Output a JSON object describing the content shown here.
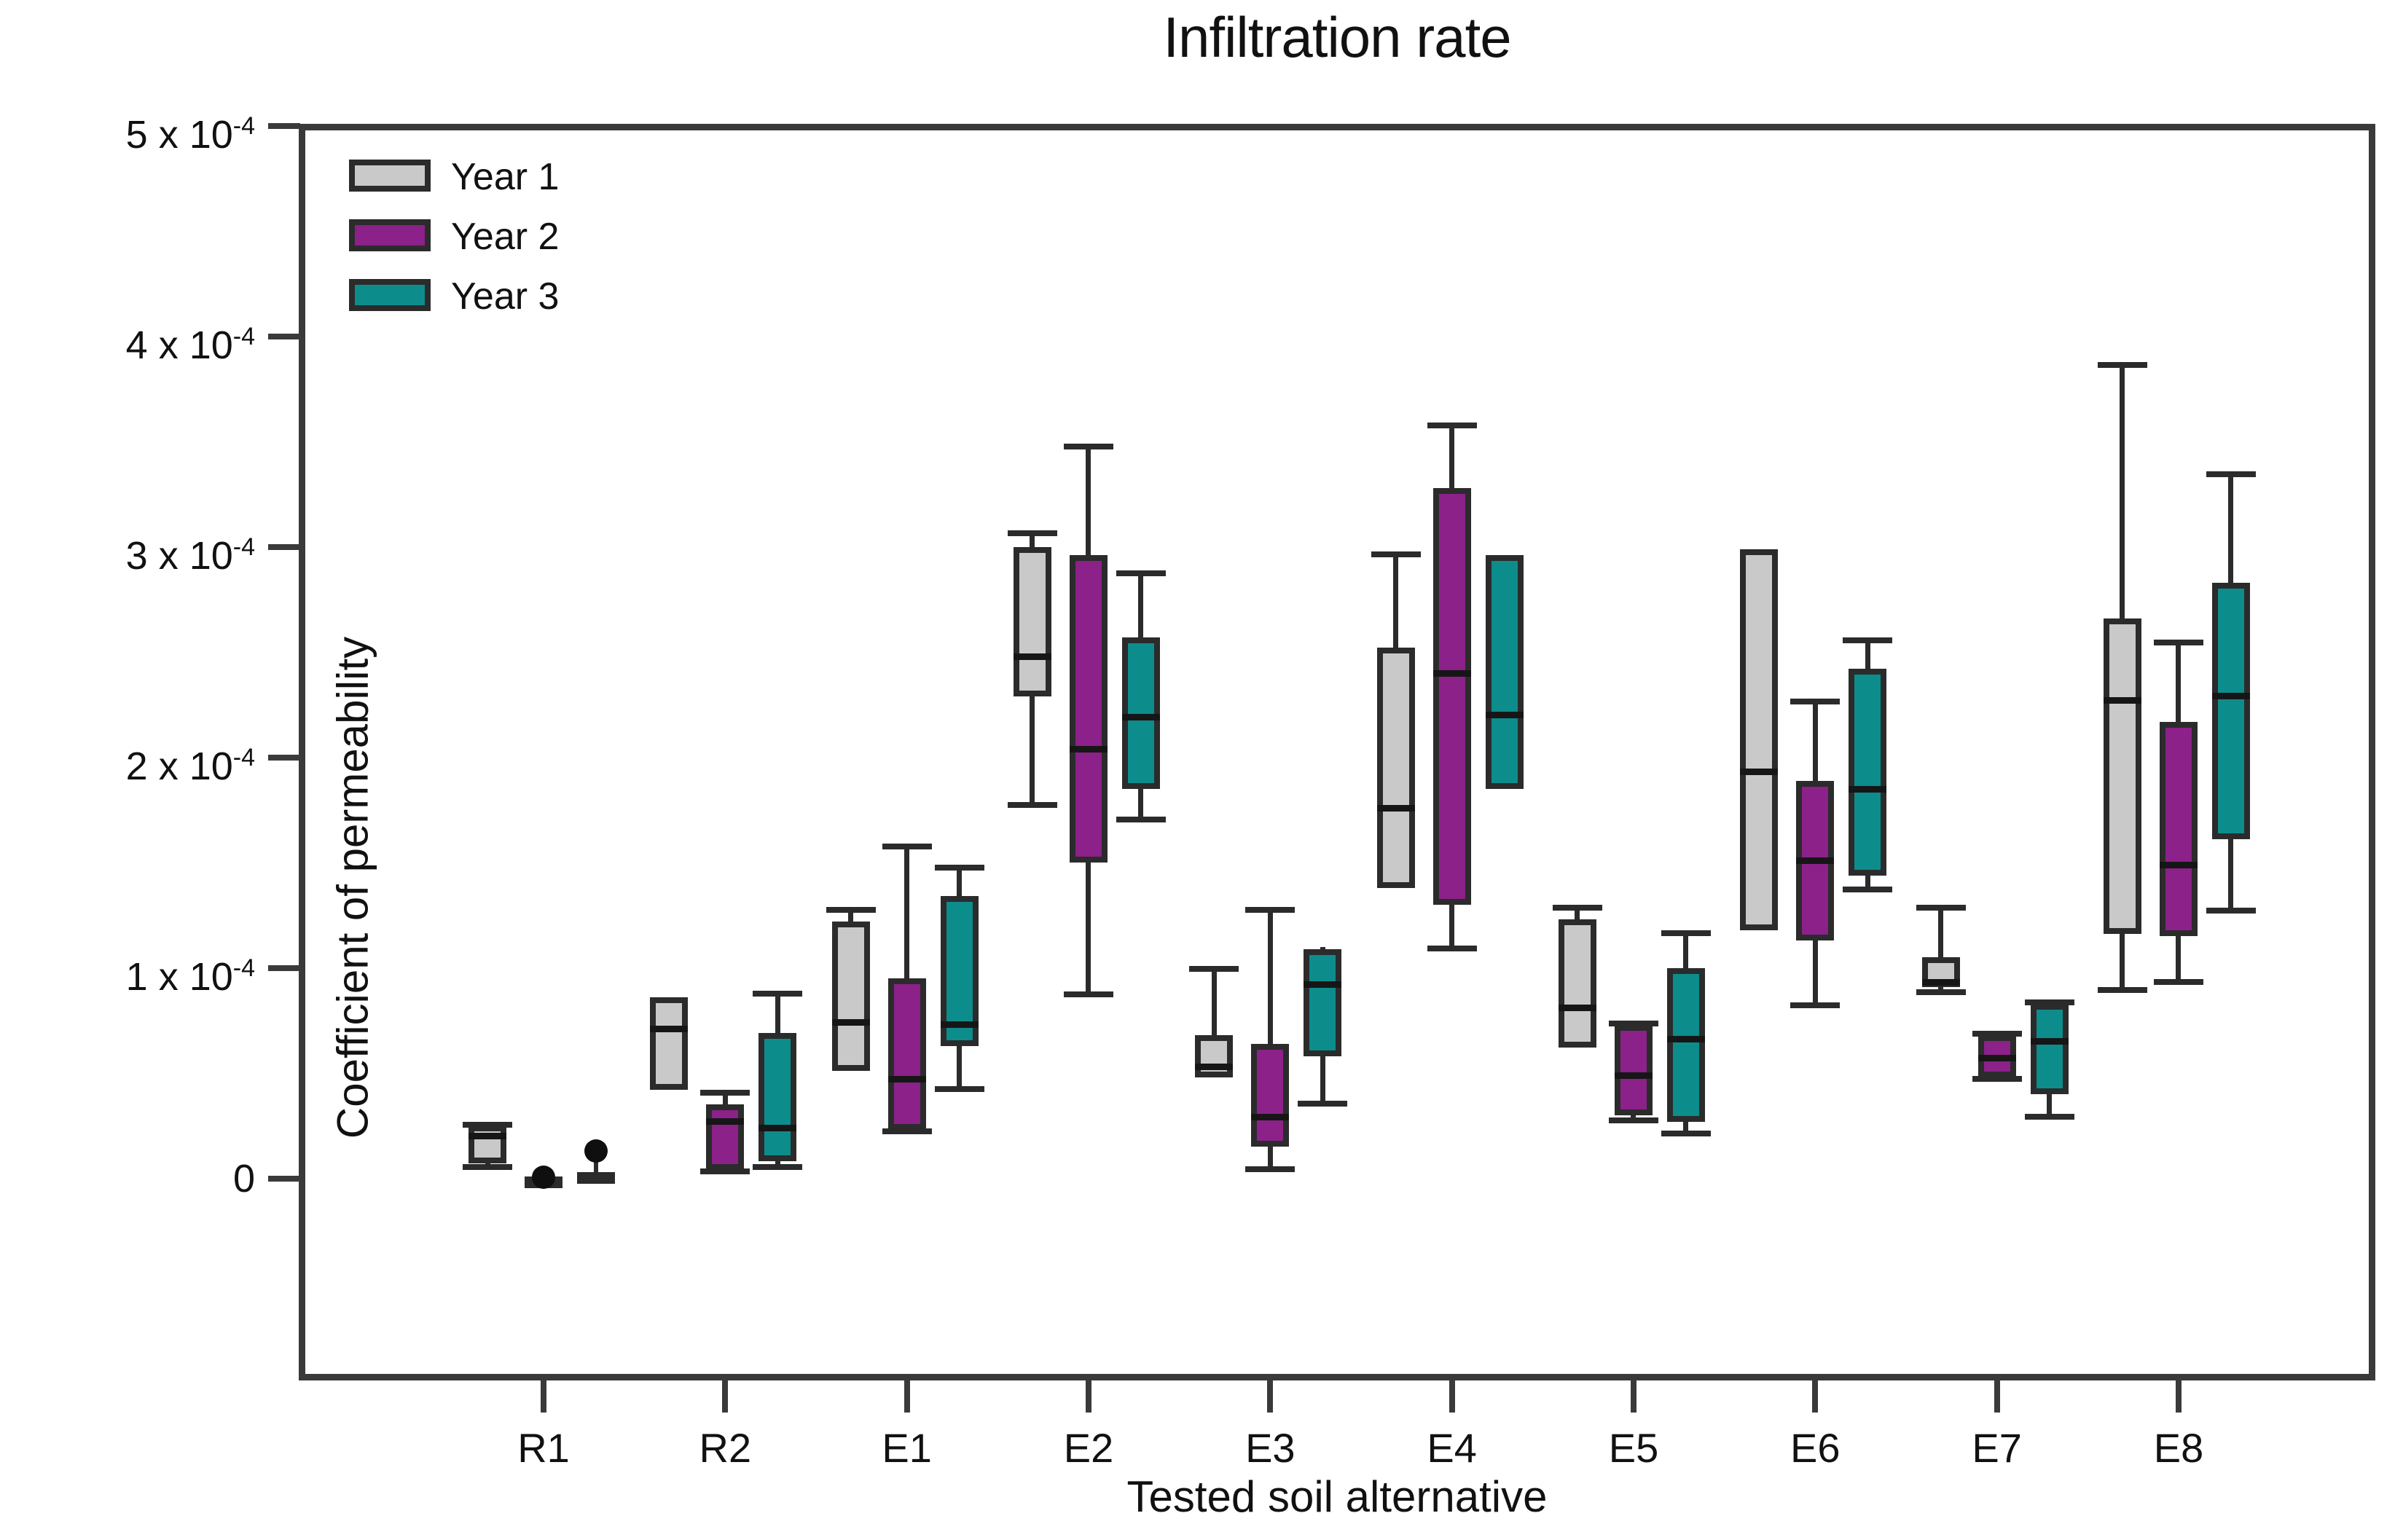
{
  "chart_data": {
    "type": "grouped_boxplot",
    "title": "Infiltration rate",
    "xlabel": "Tested soil alternative",
    "ylabel": "Coefficient of permeability",
    "grid": false,
    "legend_position": "top-left-inside",
    "ylim": [
      -0.96,
      5.01
    ],
    "y_unit_note": "values in multiples of 1e-4",
    "y_ticks": [
      {
        "v": 0,
        "label": "0"
      },
      {
        "v": 1,
        "label": "1 x 10^-4"
      },
      {
        "v": 2,
        "label": "2 x 10^-4"
      },
      {
        "v": 3,
        "label": "3 x 10^-4"
      },
      {
        "v": 4,
        "label": "4 x 10^-4"
      },
      {
        "v": 5,
        "label": "5 x 10^-4"
      }
    ],
    "categories": [
      "R1",
      "R2",
      "E1",
      "E2",
      "E3",
      "E4",
      "E5",
      "E6",
      "E7",
      "E8"
    ],
    "series": [
      {
        "name": "Year 1",
        "color": "#c9c9c9",
        "data": [
          {
            "min": 0.04,
            "q1": 0.07,
            "med": 0.2,
            "q3": 0.25,
            "max": 0.27
          },
          {
            "min": 0.42,
            "q1": 0.42,
            "med": 0.71,
            "q3": 0.86,
            "max": 0.86
          },
          {
            "min": 0.51,
            "q1": 0.51,
            "med": 0.74,
            "q3": 1.22,
            "max": 1.29
          },
          {
            "min": 1.76,
            "q1": 2.29,
            "med": 2.48,
            "q3": 3.0,
            "max": 3.08
          },
          {
            "min": 0.48,
            "q1": 0.48,
            "med": 0.53,
            "q3": 0.68,
            "max": 1.01
          },
          {
            "min": 1.38,
            "q1": 1.38,
            "med": 1.76,
            "q3": 2.52,
            "max": 2.98
          },
          {
            "min": 0.62,
            "q1": 0.62,
            "med": 0.81,
            "q3": 1.23,
            "max": 1.3
          },
          {
            "min": 1.18,
            "q1": 1.18,
            "med": 1.93,
            "q3": 2.99,
            "max": 2.99
          },
          {
            "min": 0.87,
            "q1": 0.91,
            "med": 0.93,
            "q3": 1.05,
            "max": 1.3
          },
          {
            "min": 0.88,
            "q1": 1.16,
            "med": 2.27,
            "q3": 2.66,
            "max": 3.88
          }
        ]
      },
      {
        "name": "Year 2",
        "color": "#8b2189",
        "data": [
          {
            "min": 0.0,
            "q1": 0.0,
            "med": 0.005,
            "q3": 0.01,
            "max": 0.01,
            "dot": 0.005
          },
          {
            "min": 0.02,
            "q1": 0.04,
            "med": 0.27,
            "q3": 0.35,
            "max": 0.42
          },
          {
            "min": 0.21,
            "q1": 0.23,
            "med": 0.47,
            "q3": 0.95,
            "max": 1.59
          },
          {
            "min": 0.86,
            "q1": 1.5,
            "med": 2.04,
            "q3": 2.96,
            "max": 3.49
          },
          {
            "min": 0.03,
            "q1": 0.15,
            "med": 0.29,
            "q3": 0.64,
            "max": 1.29
          },
          {
            "min": 1.08,
            "q1": 1.3,
            "med": 2.4,
            "q3": 3.28,
            "max": 3.59
          },
          {
            "min": 0.26,
            "q1": 0.3,
            "med": 0.49,
            "q3": 0.73,
            "max": 0.75
          },
          {
            "min": 0.81,
            "q1": 1.13,
            "med": 1.51,
            "q3": 1.89,
            "max": 2.28
          },
          {
            "min": 0.46,
            "q1": 0.48,
            "med": 0.57,
            "q3": 0.68,
            "max": 0.7
          },
          {
            "min": 0.92,
            "q1": 1.15,
            "med": 1.49,
            "q3": 2.17,
            "max": 2.56
          }
        ]
      },
      {
        "name": "Year 3",
        "color": "#0d8c8c",
        "data": [
          {
            "min": 0.005,
            "q1": 0.01,
            "med": 0.02,
            "q3": 0.03,
            "max": 0.03,
            "outlier": 0.13
          },
          {
            "min": 0.04,
            "q1": 0.08,
            "med": 0.24,
            "q3": 0.69,
            "max": 0.89
          },
          {
            "min": 0.41,
            "q1": 0.63,
            "med": 0.73,
            "q3": 1.34,
            "max": 1.49
          },
          {
            "min": 1.69,
            "q1": 1.85,
            "med": 2.19,
            "q3": 2.57,
            "max": 2.89
          },
          {
            "min": 0.34,
            "q1": 0.58,
            "med": 0.92,
            "q3": 1.09,
            "max": 1.1
          },
          {
            "min": 1.85,
            "q1": 1.85,
            "med": 2.2,
            "q3": 2.96,
            "max": 2.96
          },
          {
            "min": 0.2,
            "q1": 0.27,
            "med": 0.66,
            "q3": 1.0,
            "max": 1.18
          },
          {
            "min": 1.36,
            "q1": 1.44,
            "med": 1.85,
            "q3": 2.42,
            "max": 2.57
          },
          {
            "min": 0.28,
            "q1": 0.4,
            "med": 0.65,
            "q3": 0.83,
            "max": 0.85
          },
          {
            "min": 1.26,
            "q1": 1.61,
            "med": 2.29,
            "q3": 2.83,
            "max": 3.36
          }
        ]
      }
    ]
  }
}
